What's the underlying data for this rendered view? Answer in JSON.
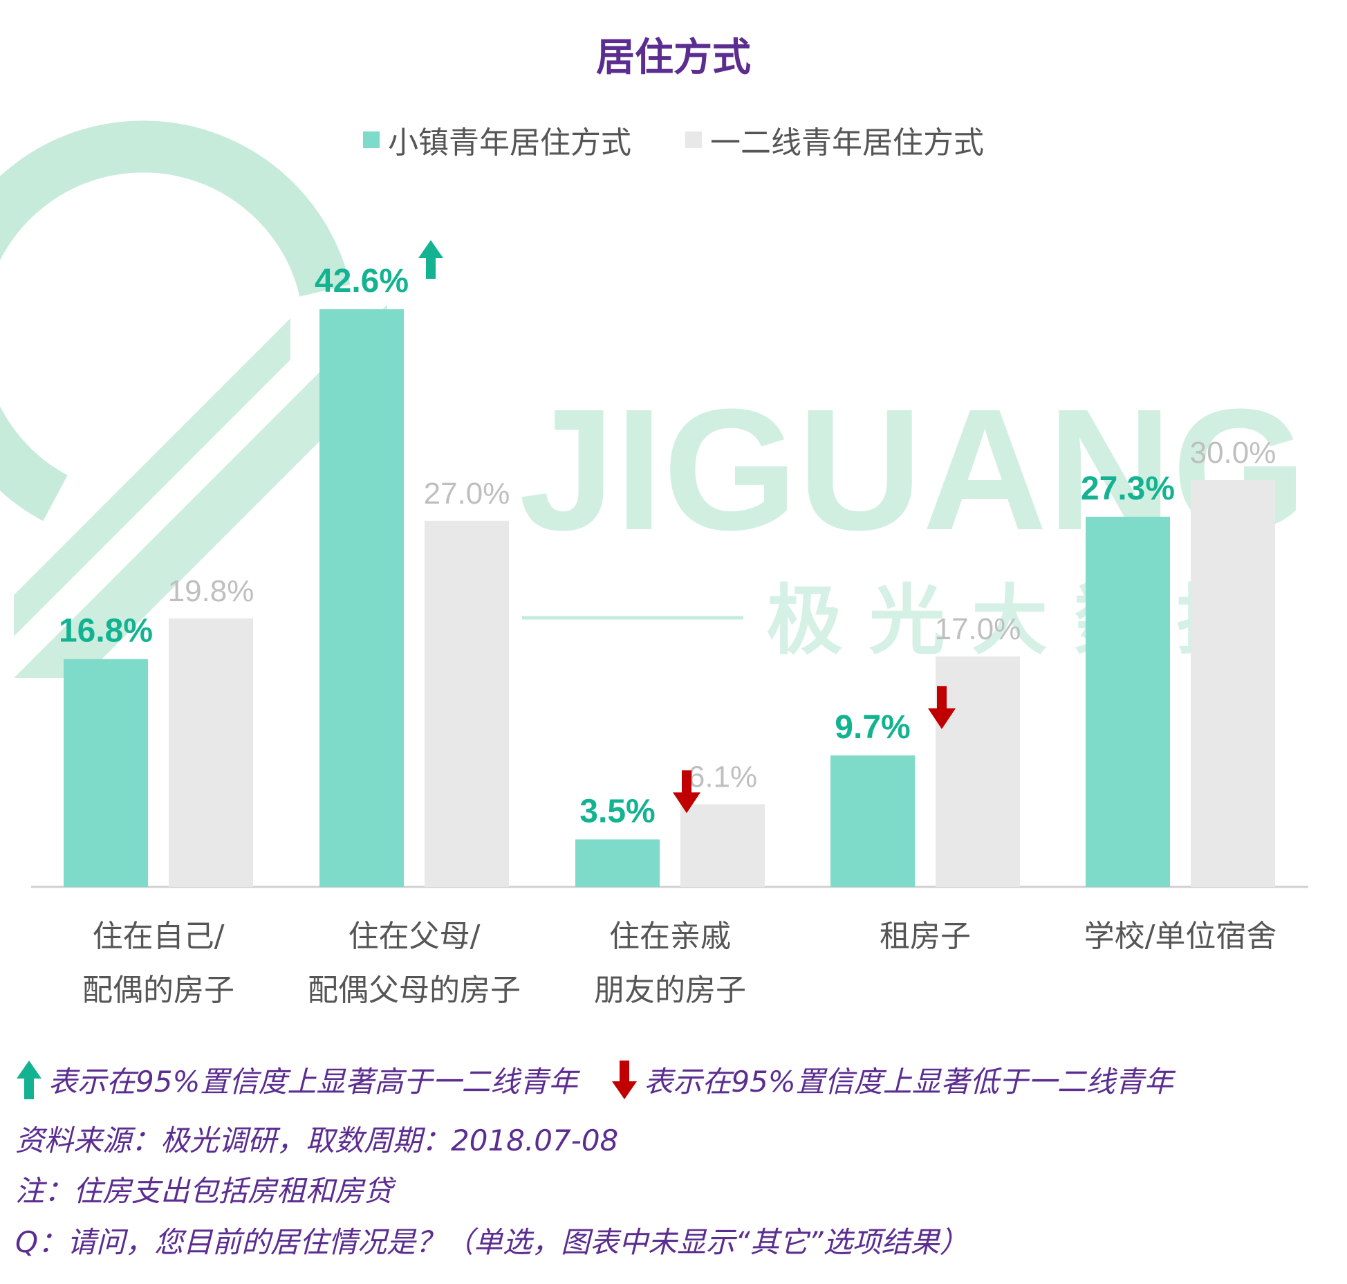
{
  "title": "居住方式",
  "watermark": {
    "logo_text": "JIGUANG",
    "cn_text": "极 光 大 数 据"
  },
  "colors": {
    "town": "#7fdbc9",
    "city": "#e8e8e8",
    "label_town": "#13b392",
    "label_city": "#bfbfbf",
    "up": "#13b392",
    "down": "#c00000",
    "title": "#5b2d90"
  },
  "chart_data": {
    "type": "bar",
    "title": "居住方式",
    "categories": [
      "住在自己/\n配偶的房子",
      "住在父母/\n配偶父母的房子",
      "住在亲戚\n朋友的房子",
      "租房子",
      "学校/单位宿舍"
    ],
    "series": [
      {
        "name": "小镇青年居住方式",
        "values": [
          16.8,
          42.6,
          3.5,
          9.7,
          27.3
        ],
        "labels": [
          "16.8%",
          "42.6%",
          "3.5%",
          "9.7%",
          "27.3%"
        ],
        "significance": [
          "",
          "up",
          "down",
          "down",
          ""
        ]
      },
      {
        "name": "一二线青年居住方式",
        "values": [
          19.8,
          27.0,
          6.1,
          17.0,
          30.0
        ],
        "labels": [
          "19.8%",
          "27.0%",
          "6.1%",
          "17.0%",
          "30.0%"
        ]
      }
    ],
    "ylim": [
      0,
      45
    ],
    "grid": false,
    "legend": "top-center"
  },
  "footer": {
    "up_note": "表示在95%置信度上显著高于一二线青年",
    "down_note": "表示在95%置信度上显著低于一二线青年",
    "source": "资料来源：极光调研，取数周期：2018.07-08",
    "note": "注：住房支出包括房租和房贷",
    "question": "Q：请问，您目前的居住情况是？（单选，图表中未显示“其它”选项结果）"
  }
}
